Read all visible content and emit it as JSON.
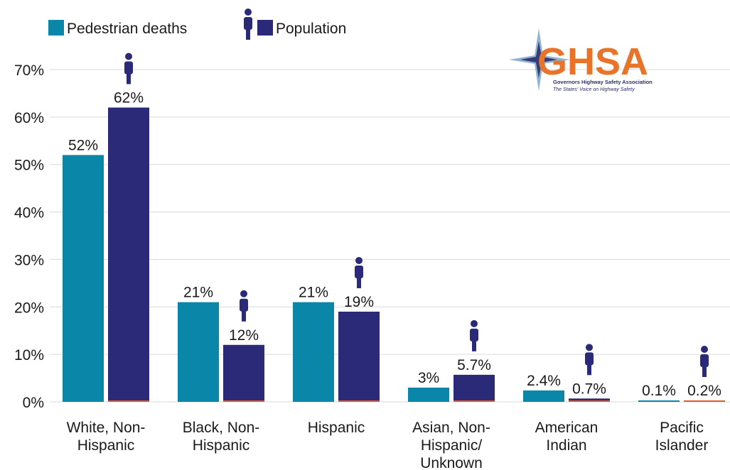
{
  "chart_data": {
    "type": "bar",
    "title": "",
    "xlabel": "",
    "ylabel": "",
    "ylim": [
      0,
      70
    ],
    "y_ticks": [
      "0%",
      "10%",
      "20%",
      "30%",
      "40%",
      "50%",
      "60%",
      "70%"
    ],
    "grid": true,
    "legend_position": "top-left",
    "categories": [
      [
        "White, Non-",
        "Hispanic"
      ],
      [
        "Black, Non-",
        "Hispanic"
      ],
      [
        "Hispanic"
      ],
      [
        "Asian, Non-",
        "Hispanic/",
        "Unknown"
      ],
      [
        "American",
        "Indian"
      ],
      [
        "Pacific",
        "Islander"
      ]
    ],
    "series": [
      {
        "name": "Pedestrian deaths",
        "color": "#0a86a8",
        "values": [
          52,
          21,
          21,
          3,
          2.4,
          0.1
        ],
        "labels": [
          "52%",
          "21%",
          "21%",
          "3%",
          "2.4%",
          "0.1%"
        ]
      },
      {
        "name": "Population",
        "color": "#2b2a78",
        "icon": "person-icon",
        "values": [
          62,
          12,
          19,
          5.7,
          0.7,
          0.2
        ],
        "labels": [
          "62%",
          "12%",
          "19%",
          "5.7%",
          "0.7%",
          "0.2%"
        ]
      }
    ]
  },
  "logo": {
    "text": "GHSA",
    "subtitle": "Governors Highway Safety Association",
    "tagline": "The States' Voice on Highway Safety",
    "primary_color": "#e8742a",
    "secondary_color": "#2b2f6e"
  },
  "colors": {
    "grid": "#d9d9d9",
    "axis_baseline": "#e05a2b"
  }
}
